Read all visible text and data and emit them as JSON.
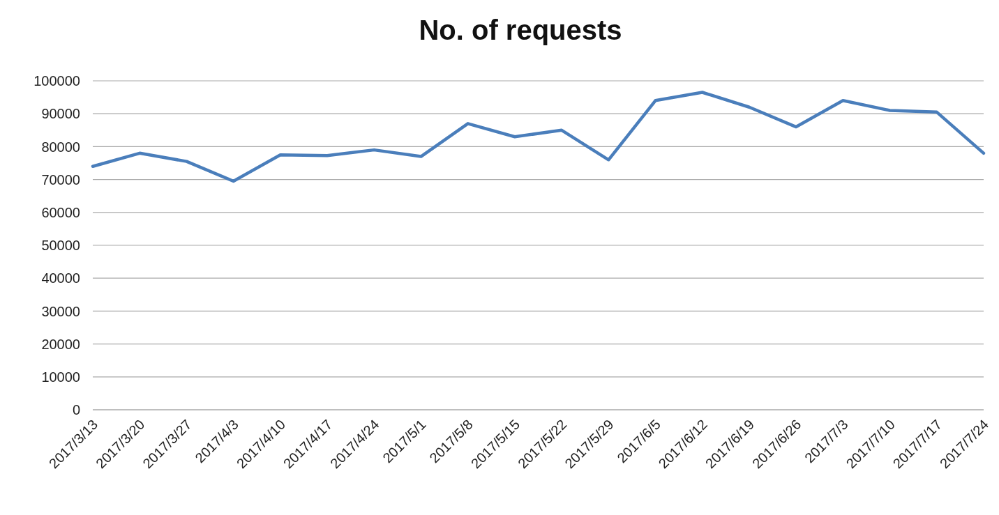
{
  "chart_data": {
    "type": "line",
    "title": "No. of requests",
    "categories": [
      "2017/3/13",
      "2017/3/20",
      "2017/3/27",
      "2017/4/3",
      "2017/4/10",
      "2017/4/17",
      "2017/4/24",
      "2017/5/1",
      "2017/5/8",
      "2017/5/15",
      "2017/5/22",
      "2017/5/29",
      "2017/6/5",
      "2017/6/12",
      "2017/6/19",
      "2017/6/26",
      "2017/7/3",
      "2017/7/10",
      "2017/7/17",
      "2017/7/24"
    ],
    "series": [
      {
        "color": "#4a7ebb",
        "values": [
          74000,
          78000,
          75500,
          69500,
          77500,
          77300,
          79000,
          77000,
          87000,
          83000,
          85000,
          76000,
          94000,
          96500,
          92000,
          86000,
          94000,
          91000,
          90500,
          78000
        ]
      }
    ],
    "ylim": [
      0,
      100000
    ],
    "yticks": [
      0,
      10000,
      20000,
      30000,
      40000,
      50000,
      60000,
      70000,
      80000,
      90000,
      100000
    ],
    "grid": "y",
    "marker": "none",
    "line_style": "solid"
  }
}
